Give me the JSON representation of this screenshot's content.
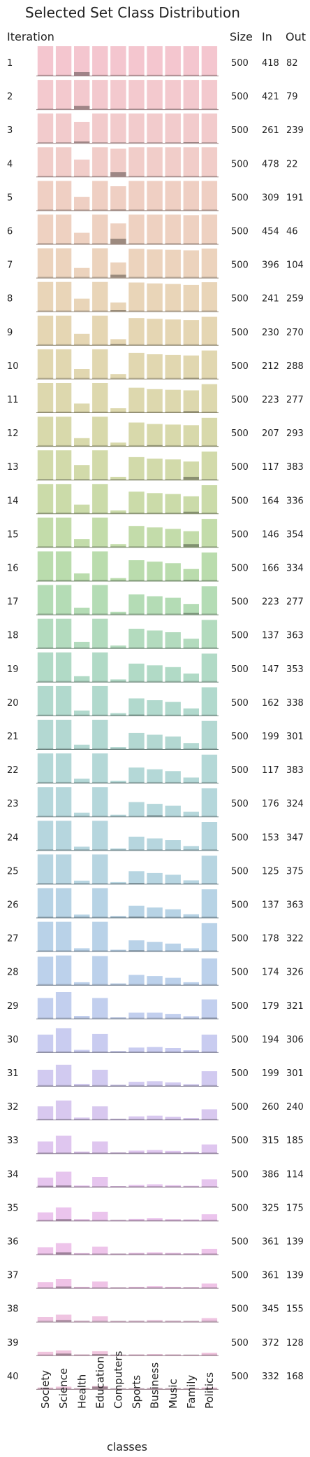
{
  "chart_data": {
    "type": "bar",
    "title": "Selected Set Class Distribution",
    "xlabel": "classes",
    "ylabel": "Iteration",
    "categories": [
      "Society",
      "Science",
      "Health",
      "Education",
      "Computers",
      "Sports",
      "Business",
      "Music",
      "Family",
      "Politics"
    ],
    "stat_headers": [
      "Size",
      "In",
      "Out"
    ],
    "colors": [
      "#f4c6cf",
      "#f3c9ce",
      "#f2cbcc",
      "#f1cdc9",
      "#efcfc3",
      "#eed1c1",
      "#ecd3bd",
      "#e9d5b8",
      "#e5d6b3",
      "#e1d7b0",
      "#ddd8ae",
      "#d8d9ab",
      "#d2daaa",
      "#cbdba9",
      "#c3dcaa",
      "#badcad",
      "#b4dcb5",
      "#b3dbbe",
      "#b1dac6",
      "#b1d9cd",
      "#b3d8d2",
      "#b4d8d7",
      "#b5d7db",
      "#b6d6de",
      "#b7d5e1",
      "#b7d3e5",
      "#b9d2e8",
      "#bcd1eb",
      "#c2cfee",
      "#c9ccf0",
      "#d1caf0",
      "#d8c8ef",
      "#dfc6ef",
      "#e6c5ee",
      "#ebc4ed",
      "#eec4ea",
      "#efc3e6",
      "#efc4e1",
      "#f0c5de",
      "#f1c6dc"
    ],
    "iterations": [
      {
        "label": "1",
        "size": "500",
        "in": "418",
        "out": "82",
        "base": [
          1,
          1,
          1,
          1,
          1,
          1,
          1,
          1,
          1,
          1
        ],
        "selected": [
          0,
          0,
          0.12,
          0,
          0,
          0,
          0,
          0,
          0,
          0
        ]
      },
      {
        "label": "2",
        "size": "500",
        "in": "421",
        "out": "79",
        "base": [
          1,
          1,
          1,
          1,
          1,
          1,
          1,
          1,
          1,
          1
        ],
        "selected": [
          0,
          0,
          0.12,
          0,
          0,
          0,
          0,
          0,
          0,
          0
        ]
      },
      {
        "label": "3",
        "size": "500",
        "in": "261",
        "out": "239",
        "base": [
          1,
          1,
          0.72,
          1,
          1,
          1,
          1,
          1,
          1,
          1
        ],
        "selected": [
          0,
          0,
          0.05,
          0,
          0,
          0,
          0,
          0,
          0.02,
          0
        ]
      },
      {
        "label": "4",
        "size": "500",
        "in": "478",
        "out": "22",
        "base": [
          1,
          1,
          0.58,
          1,
          0.95,
          1,
          1,
          1,
          1,
          1
        ],
        "selected": [
          0,
          0,
          0,
          0,
          0.15,
          0,
          0,
          0,
          0,
          0
        ]
      },
      {
        "label": "5",
        "size": "500",
        "in": "309",
        "out": "191",
        "base": [
          1,
          1,
          0.46,
          1,
          0.82,
          1,
          1,
          1,
          1,
          1
        ],
        "selected": [
          0,
          0,
          0,
          0,
          0.02,
          0,
          0,
          0,
          0,
          0
        ]
      },
      {
        "label": "6",
        "size": "500",
        "in": "454",
        "out": "46",
        "base": [
          1,
          1,
          0.38,
          1,
          0.7,
          1,
          1,
          1,
          0.98,
          1
        ],
        "selected": [
          0,
          0,
          0,
          0,
          0.18,
          0,
          0,
          0,
          0,
          0
        ]
      },
      {
        "label": "7",
        "size": "500",
        "in": "396",
        "out": "104",
        "base": [
          1,
          1,
          0.33,
          1,
          0.52,
          0.98,
          0.96,
          0.95,
          0.93,
          0.99
        ],
        "selected": [
          0,
          0,
          0,
          0,
          0.1,
          0,
          0,
          0,
          0,
          0
        ]
      },
      {
        "label": "8",
        "size": "500",
        "in": "241",
        "out": "259",
        "base": [
          1,
          1,
          0.43,
          1,
          0.3,
          0.98,
          0.95,
          0.93,
          0.9,
          0.99
        ],
        "selected": [
          0,
          0,
          0,
          0,
          0.04,
          0,
          0,
          0,
          0,
          0
        ]
      },
      {
        "label": "9",
        "size": "500",
        "in": "230",
        "out": "270",
        "base": [
          1,
          1,
          0.38,
          1,
          0.2,
          0.92,
          0.89,
          0.87,
          0.85,
          0.96
        ],
        "selected": [
          0,
          0,
          0,
          0,
          0.04,
          0,
          0,
          0,
          0,
          0
        ]
      },
      {
        "label": "10",
        "size": "500",
        "in": "212",
        "out": "288",
        "base": [
          1,
          1,
          0.33,
          1,
          0.16,
          0.88,
          0.83,
          0.81,
          0.79,
          0.96
        ],
        "selected": [
          0,
          0,
          0,
          0,
          0,
          0,
          0,
          0,
          0.03,
          0
        ]
      },
      {
        "label": "11",
        "size": "500",
        "in": "223",
        "out": "277",
        "base": [
          1,
          1,
          0.3,
          1,
          0.14,
          0.84,
          0.79,
          0.77,
          0.75,
          0.96
        ],
        "selected": [
          0,
          0,
          0,
          0,
          0,
          0,
          0,
          0,
          0.04,
          0
        ]
      },
      {
        "label": "12",
        "size": "500",
        "in": "207",
        "out": "293",
        "base": [
          1,
          1,
          0.27,
          1,
          0.12,
          0.8,
          0.75,
          0.73,
          0.71,
          0.96
        ],
        "selected": [
          0,
          0,
          0,
          0,
          0,
          0,
          0.03,
          0,
          0,
          0
        ]
      },
      {
        "label": "13",
        "size": "500",
        "in": "117",
        "out": "383",
        "base": [
          1,
          1,
          0.5,
          1,
          0.1,
          0.77,
          0.72,
          0.69,
          0.62,
          0.96
        ],
        "selected": [
          0,
          0,
          0,
          0,
          0,
          0,
          0,
          0,
          0.1,
          0
        ]
      },
      {
        "label": "14",
        "size": "500",
        "in": "164",
        "out": "336",
        "base": [
          1,
          1,
          0.3,
          1,
          0.1,
          0.74,
          0.69,
          0.66,
          0.58,
          0.96
        ],
        "selected": [
          0,
          0,
          0,
          0,
          0,
          0,
          0,
          0,
          0.06,
          0
        ]
      },
      {
        "label": "15",
        "size": "500",
        "in": "146",
        "out": "354",
        "base": [
          1,
          1,
          0.27,
          1,
          0.1,
          0.72,
          0.67,
          0.62,
          0.54,
          0.96
        ],
        "selected": [
          0,
          0,
          0,
          0,
          0,
          0,
          0,
          0,
          0.1,
          0
        ]
      },
      {
        "label": "16",
        "size": "500",
        "in": "166",
        "out": "334",
        "base": [
          1,
          1,
          0.25,
          1,
          0.09,
          0.7,
          0.65,
          0.6,
          0.4,
          0.96
        ],
        "selected": [
          0,
          0,
          0,
          0,
          0,
          0,
          0,
          0,
          0.03,
          0
        ]
      },
      {
        "label": "17",
        "size": "500",
        "in": "223",
        "out": "277",
        "base": [
          1,
          1,
          0.23,
          1,
          0.09,
          0.68,
          0.62,
          0.57,
          0.35,
          0.96
        ],
        "selected": [
          0,
          0,
          0,
          0,
          0,
          0,
          0,
          0,
          0.05,
          0
        ]
      },
      {
        "label": "18",
        "size": "500",
        "in": "137",
        "out": "363",
        "base": [
          1,
          1,
          0.21,
          1,
          0.09,
          0.66,
          0.6,
          0.54,
          0.32,
          0.96
        ],
        "selected": [
          0,
          0,
          0,
          0,
          0,
          0,
          0,
          0,
          0,
          0
        ]
      },
      {
        "label": "19",
        "size": "500",
        "in": "147",
        "out": "353",
        "base": [
          1,
          1,
          0.19,
          1,
          0.08,
          0.62,
          0.56,
          0.5,
          0.28,
          0.96
        ],
        "selected": [
          0,
          0,
          0,
          0,
          0,
          0,
          0,
          0,
          0,
          0
        ]
      },
      {
        "label": "20",
        "size": "500",
        "in": "162",
        "out": "338",
        "base": [
          1,
          1,
          0.17,
          1,
          0.08,
          0.58,
          0.52,
          0.46,
          0.24,
          0.96
        ],
        "selected": [
          0,
          0,
          0,
          0,
          0,
          0.03,
          0,
          0,
          0,
          0
        ]
      },
      {
        "label": "21",
        "size": "500",
        "in": "199",
        "out": "301",
        "base": [
          1,
          1,
          0.15,
          1,
          0.07,
          0.55,
          0.49,
          0.43,
          0.21,
          0.96
        ],
        "selected": [
          0,
          0,
          0,
          0,
          0,
          0,
          0,
          0,
          0,
          0
        ]
      },
      {
        "label": "22",
        "size": "500",
        "in": "117",
        "out": "383",
        "base": [
          1,
          1,
          0.14,
          1,
          0.07,
          0.52,
          0.46,
          0.4,
          0.18,
          0.96
        ],
        "selected": [
          0,
          0,
          0,
          0,
          0,
          0,
          0,
          0,
          0,
          0
        ]
      },
      {
        "label": "23",
        "size": "500",
        "in": "176",
        "out": "324",
        "base": [
          1,
          1,
          0.13,
          1,
          0.06,
          0.49,
          0.43,
          0.37,
          0.16,
          0.96
        ],
        "selected": [
          0,
          0,
          0,
          0,
          0,
          0,
          0.04,
          0,
          0,
          0
        ]
      },
      {
        "label": "24",
        "size": "500",
        "in": "153",
        "out": "347",
        "base": [
          1,
          1,
          0.12,
          1,
          0.06,
          0.46,
          0.4,
          0.34,
          0.14,
          0.96
        ],
        "selected": [
          0,
          0,
          0,
          0,
          0,
          0,
          0,
          0,
          0,
          0
        ]
      },
      {
        "label": "25",
        "size": "500",
        "in": "125",
        "out": "375",
        "base": [
          1,
          1,
          0.11,
          1,
          0.06,
          0.43,
          0.37,
          0.31,
          0.12,
          0.96
        ],
        "selected": [
          0,
          0,
          0,
          0,
          0,
          0.03,
          0,
          0,
          0,
          0
        ]
      },
      {
        "label": "26",
        "size": "500",
        "in": "137",
        "out": "363",
        "base": [
          1,
          1,
          0.1,
          1,
          0.05,
          0.4,
          0.34,
          0.28,
          0.11,
          0.96
        ],
        "selected": [
          0,
          0,
          0,
          0,
          0,
          0.03,
          0,
          0,
          0,
          0
        ]
      },
      {
        "label": "27",
        "size": "500",
        "in": "178",
        "out": "322",
        "base": [
          1,
          1,
          0.1,
          1,
          0.05,
          0.37,
          0.32,
          0.26,
          0.1,
          0.96
        ],
        "selected": [
          0,
          0,
          0,
          0,
          0,
          0.03,
          0,
          0,
          0,
          0
        ]
      },
      {
        "label": "28",
        "size": "500",
        "in": "174",
        "out": "326",
        "base": [
          0.96,
          1,
          0.09,
          0.98,
          0.05,
          0.34,
          0.3,
          0.24,
          0.09,
          0.9
        ],
        "selected": [
          0,
          0,
          0,
          0,
          0,
          0,
          0,
          0,
          0,
          0
        ]
      },
      {
        "label": "29",
        "size": "500",
        "in": "179",
        "out": "321",
        "base": [
          0.7,
          0.9,
          0.09,
          0.7,
          0.04,
          0.2,
          0.2,
          0.16,
          0.08,
          0.65
        ],
        "selected": [
          0,
          0,
          0,
          0,
          0,
          0,
          0,
          0,
          0,
          0.03
        ]
      },
      {
        "label": "30",
        "size": "500",
        "in": "194",
        "out": "306",
        "base": [
          0.6,
          0.82,
          0.08,
          0.62,
          0.04,
          0.16,
          0.18,
          0.14,
          0.07,
          0.6
        ],
        "selected": [
          0,
          0,
          0,
          0,
          0,
          0,
          0,
          0,
          0,
          0
        ]
      },
      {
        "label": "31",
        "size": "500",
        "in": "199",
        "out": "301",
        "base": [
          0.55,
          0.72,
          0.07,
          0.55,
          0.04,
          0.14,
          0.16,
          0.12,
          0.06,
          0.5
        ],
        "selected": [
          0,
          0,
          0,
          0,
          0,
          0,
          0,
          0,
          0,
          0
        ]
      },
      {
        "label": "32",
        "size": "500",
        "in": "260",
        "out": "240",
        "base": [
          0.45,
          0.65,
          0.07,
          0.45,
          0.03,
          0.11,
          0.13,
          0.1,
          0.05,
          0.35
        ],
        "selected": [
          0,
          0,
          0,
          0,
          0,
          0,
          0,
          0,
          0,
          0
        ]
      },
      {
        "label": "33",
        "size": "500",
        "in": "315",
        "out": "185",
        "base": [
          0.4,
          0.6,
          0.06,
          0.4,
          0.03,
          0.09,
          0.11,
          0.08,
          0.05,
          0.3
        ],
        "selected": [
          0,
          0,
          0,
          0,
          0,
          0,
          0,
          0,
          0,
          0
        ]
      },
      {
        "label": "34",
        "size": "500",
        "in": "386",
        "out": "114",
        "base": [
          0.32,
          0.52,
          0.05,
          0.34,
          0.03,
          0.07,
          0.09,
          0.06,
          0.04,
          0.26
        ],
        "selected": [
          0.04,
          0.05,
          0,
          0,
          0,
          0,
          0,
          0,
          0,
          0
        ]
      },
      {
        "label": "35",
        "size": "500",
        "in": "325",
        "out": "175",
        "base": [
          0.28,
          0.45,
          0.05,
          0.3,
          0.02,
          0.06,
          0.08,
          0.05,
          0.04,
          0.22
        ],
        "selected": [
          0,
          0.05,
          0,
          0,
          0,
          0,
          0,
          0,
          0,
          0
        ]
      },
      {
        "label": "36",
        "size": "500",
        "in": "361",
        "out": "139",
        "base": [
          0.24,
          0.38,
          0.04,
          0.26,
          0.02,
          0.05,
          0.07,
          0.05,
          0.03,
          0.18
        ],
        "selected": [
          0,
          0.07,
          0,
          0,
          0,
          0,
          0,
          0,
          0,
          0
        ]
      },
      {
        "label": "37",
        "size": "500",
        "in": "361",
        "out": "139",
        "base": [
          0.2,
          0.3,
          0.04,
          0.22,
          0.02,
          0.04,
          0.06,
          0.04,
          0.03,
          0.15
        ],
        "selected": [
          0,
          0.05,
          0,
          0,
          0,
          0,
          0,
          0,
          0,
          0
        ]
      },
      {
        "label": "38",
        "size": "500",
        "in": "345",
        "out": "155",
        "base": [
          0.16,
          0.24,
          0.03,
          0.18,
          0.02,
          0.03,
          0.05,
          0.03,
          0.02,
          0.12
        ],
        "selected": [
          0,
          0.05,
          0,
          0,
          0,
          0,
          0,
          0,
          0,
          0
        ]
      },
      {
        "label": "39",
        "size": "500",
        "in": "372",
        "out": "128",
        "base": [
          0.12,
          0.17,
          0.03,
          0.14,
          0.01,
          0.03,
          0.04,
          0.03,
          0.02,
          0.09
        ],
        "selected": [
          0,
          0.06,
          0,
          0.04,
          0,
          0,
          0,
          0,
          0,
          0
        ]
      },
      {
        "label": "40",
        "size": "500",
        "in": "332",
        "out": "168",
        "base": [
          0.05,
          0.08,
          0.02,
          0.1,
          0.01,
          0.02,
          0.03,
          0.02,
          0.02,
          0.05
        ],
        "selected": [
          0,
          0,
          0,
          0.08,
          0,
          0,
          0,
          0,
          0,
          0
        ]
      }
    ]
  }
}
